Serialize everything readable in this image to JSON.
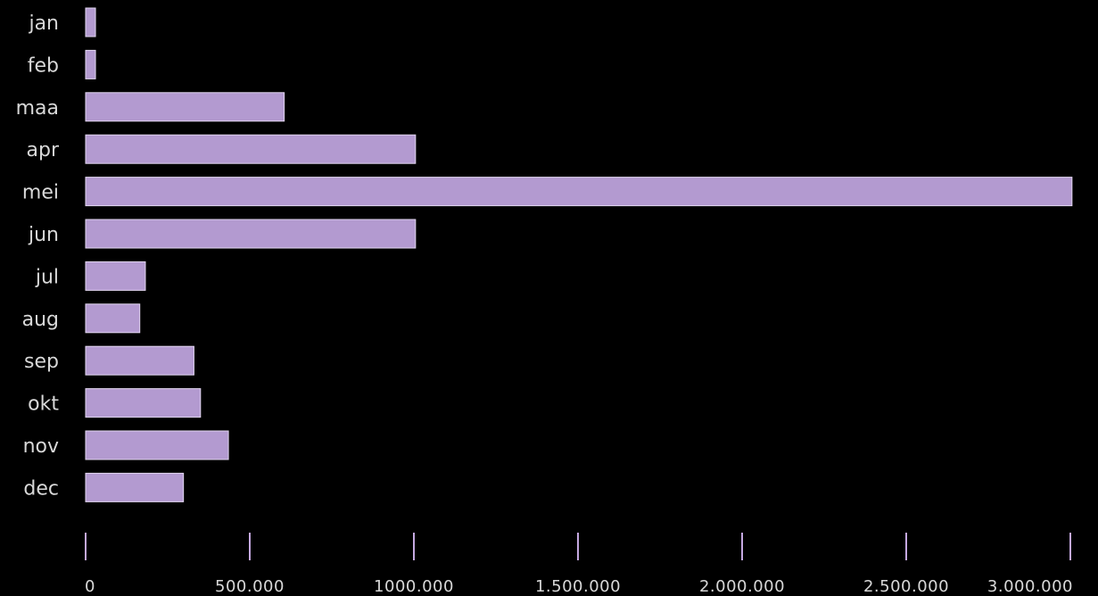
{
  "chart_data": {
    "type": "bar",
    "orientation": "horizontal",
    "categories": [
      "jan",
      "feb",
      "maa",
      "apr",
      "mei",
      "jun",
      "jul",
      "aug",
      "sep",
      "okt",
      "nov",
      "dec"
    ],
    "values": [
      30000,
      30000,
      605000,
      1005000,
      3005000,
      1005000,
      182000,
      165000,
      330000,
      350000,
      435000,
      298000
    ],
    "xlim": [
      0,
      3000000
    ],
    "x_ticks": [
      0,
      500000,
      1000000,
      1500000,
      2000000,
      2500000,
      3000000
    ],
    "x_tick_labels": [
      "0",
      "500.000",
      "1000.000",
      "1.500.000",
      "2.000.000",
      "2.500.000",
      "3.000.000"
    ],
    "title": "",
    "xlabel": "",
    "ylabel": "",
    "grid": false,
    "legend": "none",
    "colors": {
      "bar": "#b39ad0",
      "bar_stroke": "#e2d6f0",
      "tick": "#c4a8e0",
      "text": "#d8d8d8",
      "background": "#000000"
    }
  }
}
